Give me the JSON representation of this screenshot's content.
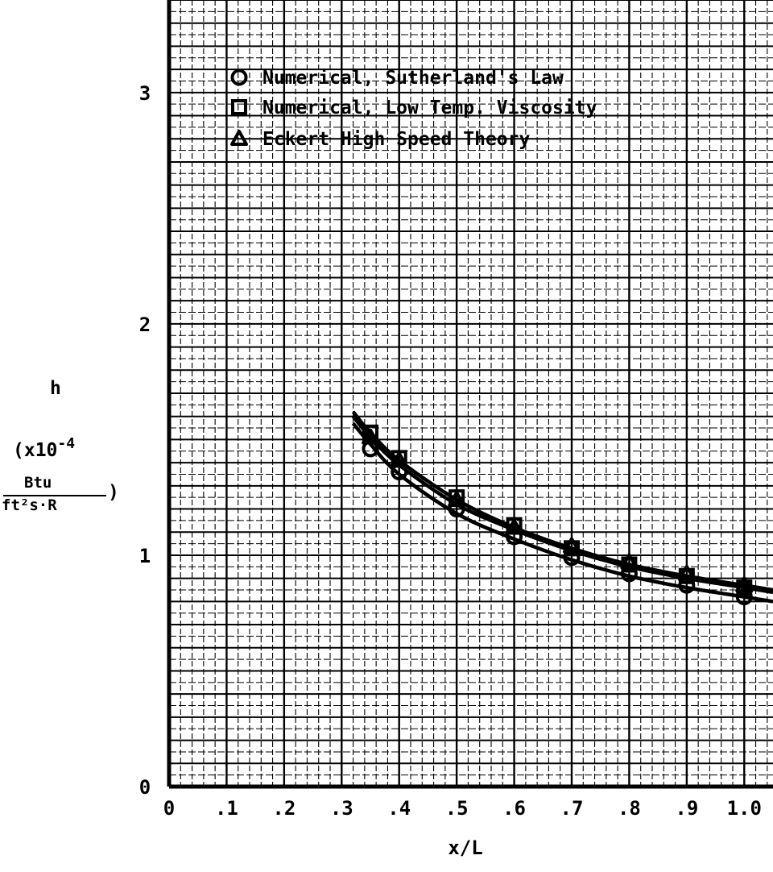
{
  "chart_data": {
    "type": "line",
    "xlabel": "x/L",
    "ylabel": {
      "symbol": "h",
      "scale": "(x10",
      "exponent": "-4",
      "unit_numerator": "Btu",
      "unit_denominator": "ft²s·R",
      "close": ")"
    },
    "xlim": [
      0,
      1.05
    ],
    "ylim": [
      0,
      3.4
    ],
    "x_ticks": [
      "0",
      ".1",
      ".2",
      ".3",
      ".4",
      ".5",
      ".6",
      ".7",
      ".8",
      ".9",
      "1.0"
    ],
    "y_ticks": [
      "0",
      "1",
      "2",
      "3"
    ],
    "grid": true,
    "legend_position": "top-left",
    "curves_x": [
      0.32,
      0.35,
      0.4,
      0.5,
      0.6,
      0.7,
      0.8,
      0.9,
      1.0,
      1.05
    ],
    "series": [
      {
        "name": "Numerical, Sutherland's Law",
        "marker": "circle",
        "x": [
          0.35,
          0.4,
          0.5,
          0.6,
          0.7,
          0.8,
          0.9,
          1.0
        ],
        "values": [
          1.46,
          1.36,
          1.2,
          1.08,
          0.99,
          0.92,
          0.87,
          0.82
        ],
        "curve": [
          1.57,
          1.48,
          1.35,
          1.18,
          1.07,
          0.98,
          0.91,
          0.86,
          0.82,
          0.8
        ]
      },
      {
        "name": "Numerical, Low Temp. Viscosity",
        "marker": "square",
        "x": [
          0.35,
          0.4,
          0.5,
          0.6,
          0.7,
          0.8,
          0.9,
          1.0
        ],
        "values": [
          1.53,
          1.42,
          1.25,
          1.13,
          1.03,
          0.96,
          0.91,
          0.86
        ],
        "curve": [
          1.62,
          1.53,
          1.41,
          1.24,
          1.12,
          1.03,
          0.96,
          0.91,
          0.87,
          0.85
        ]
      },
      {
        "name": "Eckert High Speed Theory",
        "marker": "triangle",
        "x": [
          0.35,
          0.4,
          0.5,
          0.6,
          0.7,
          0.8,
          0.9,
          1.0
        ],
        "values": [
          1.51,
          1.41,
          1.24,
          1.12,
          1.04,
          0.97,
          0.92,
          0.87
        ],
        "curve": [
          1.6,
          1.51,
          1.39,
          1.22,
          1.11,
          1.02,
          0.95,
          0.9,
          0.86,
          0.84
        ]
      }
    ]
  }
}
